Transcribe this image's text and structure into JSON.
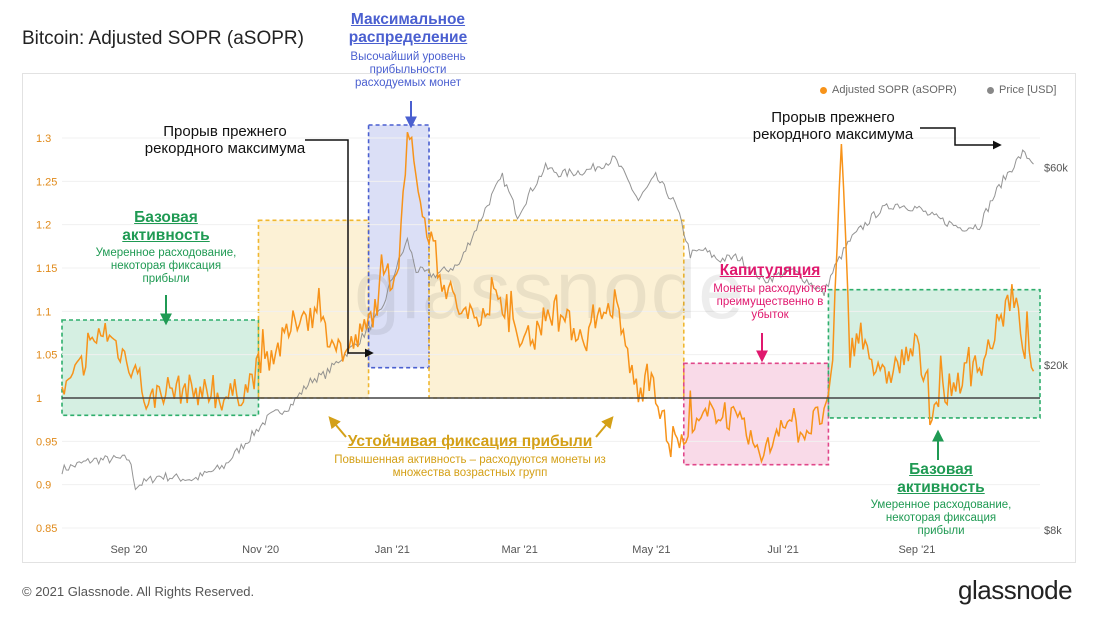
{
  "header": {
    "title": "Bitcoin: Adjusted SOPR (aSOPR)"
  },
  "footer": {
    "copyright": "© 2021 Glassnode. All Rights Reserved.",
    "brand": "glassnode"
  },
  "watermark": "glassnode",
  "legend": {
    "asopr": {
      "label": "Adjusted SOPR (aSOPR)",
      "color": "#f7931a"
    },
    "price": {
      "label": "Price [USD]",
      "color": "#888888"
    }
  },
  "chart_data": {
    "type": "line",
    "title": "Bitcoin: Adjusted SOPR (aSOPR)",
    "x_ticks": [
      "Sep '20",
      "Nov '20",
      "Jan '21",
      "Mar '21",
      "May '21",
      "Jul '21",
      "Sep '21"
    ],
    "y_left": {
      "label": "aSOPR",
      "ylim": [
        0.85,
        1.3
      ],
      "ticks": [
        "0.85",
        "0.9",
        "0.95",
        "1",
        "1.05",
        "1.1",
        "1.15",
        "1.2",
        "1.25",
        "1.3"
      ]
    },
    "y_right": {
      "label": "Price [USD]",
      "scale": "log",
      "ticks": [
        "$8k",
        "$20k",
        "$60k"
      ]
    },
    "baseline": 1,
    "series": [
      {
        "name": "Price [USD]",
        "color": "#888888",
        "axis": "right",
        "x": [
          "2020-08-01",
          "2020-08-15",
          "2020-09-01",
          "2020-09-04",
          "2020-09-15",
          "2020-10-01",
          "2020-10-15",
          "2020-10-25",
          "2020-11-05",
          "2020-11-15",
          "2020-11-25",
          "2020-12-01",
          "2020-12-17",
          "2020-12-27",
          "2021-01-08",
          "2021-01-12",
          "2021-01-20",
          "2021-02-01",
          "2021-02-10",
          "2021-02-21",
          "2021-02-28",
          "2021-03-13",
          "2021-03-20",
          "2021-04-01",
          "2021-04-14",
          "2021-04-25",
          "2021-05-03",
          "2021-05-12",
          "2021-05-19",
          "2021-05-25",
          "2021-06-01",
          "2021-06-10",
          "2021-06-22",
          "2021-07-05",
          "2021-07-20",
          "2021-07-25",
          "2021-08-01",
          "2021-08-14",
          "2021-08-22",
          "2021-09-01",
          "2021-09-07",
          "2021-09-21",
          "2021-09-30",
          "2021-10-10",
          "2021-10-20",
          "2021-10-25"
        ],
        "values": [
          11200,
          11800,
          11900,
          10200,
          10800,
          10600,
          11400,
          13000,
          15000,
          16000,
          18500,
          19000,
          23000,
          27000,
          40000,
          34000,
          33000,
          35000,
          44000,
          57000,
          46000,
          60000,
          58000,
          59000,
          63000,
          50000,
          57000,
          49000,
          37000,
          38000,
          36000,
          36500,
          32000,
          34000,
          29800,
          34500,
          40000,
          47000,
          49000,
          48000,
          46000,
          43000,
          43500,
          55000,
          65000,
          62000
        ]
      },
      {
        "name": "Adjusted SOPR (aSOPR)",
        "color": "#f7931a",
        "axis": "left",
        "x": [
          "2020-08-01",
          "2020-08-20",
          "2020-09-05",
          "2020-09-10",
          "2020-09-15",
          "2020-10-01",
          "2020-10-15",
          "2020-10-25",
          "2020-11-01",
          "2020-11-10",
          "2020-11-20",
          "2020-12-01",
          "2020-12-10",
          "2020-12-20",
          "2020-12-28",
          "2021-01-04",
          "2021-01-08",
          "2021-01-15",
          "2021-01-25",
          "2021-02-05",
          "2021-02-20",
          "2021-03-01",
          "2021-03-15",
          "2021-04-01",
          "2021-04-14",
          "2021-04-25",
          "2021-05-01",
          "2021-05-10",
          "2021-05-20",
          "2021-06-01",
          "2021-06-10",
          "2021-06-22",
          "2021-07-01",
          "2021-07-10",
          "2021-07-23",
          "2021-07-28",
          "2021-08-01",
          "2021-08-05",
          "2021-08-15",
          "2021-09-01",
          "2021-09-07",
          "2021-09-20",
          "2021-10-01",
          "2021-10-15",
          "2021-10-25"
        ],
        "values": [
          1.0,
          1.08,
          1.03,
          0.99,
          1.01,
          1.01,
          1.0,
          1.01,
          1.04,
          1.06,
          1.1,
          1.08,
          1.05,
          1.08,
          1.13,
          1.15,
          1.31,
          1.22,
          1.13,
          1.09,
          1.12,
          1.06,
          1.1,
          1.07,
          1.11,
          1.0,
          1.03,
          0.94,
          0.96,
          0.99,
          0.97,
          0.93,
          0.98,
          0.96,
          0.99,
          1.29,
          1.05,
          1.08,
          1.02,
          1.06,
          0.99,
          1.02,
          1.04,
          1.12,
          1.02
        ]
      }
    ],
    "regions": [
      {
        "name": "baseline-1",
        "start": "2020-08-01",
        "end": "2020-10-31",
        "ymin": 0.98,
        "ymax": 1.09,
        "color": "#2eae6c"
      },
      {
        "name": "profit-1",
        "start": "2020-10-31",
        "end": "2020-12-21",
        "ymin": 1.0,
        "ymax": 1.205,
        "color": "#f0b72f"
      },
      {
        "name": "distribution",
        "start": "2020-12-21",
        "end": "2021-01-18",
        "ymin": 1.035,
        "ymax": 1.315,
        "color": "#4a5fd0"
      },
      {
        "name": "profit-2",
        "start": "2021-01-18",
        "end": "2021-05-16",
        "ymin": 1.0,
        "ymax": 1.205,
        "color": "#f0b72f"
      },
      {
        "name": "capitulation",
        "start": "2021-05-16",
        "end": "2021-07-22",
        "ymin": 0.923,
        "ymax": 1.04,
        "color": "#e0478a"
      },
      {
        "name": "baseline-2",
        "start": "2021-07-22",
        "end": "2021-10-28",
        "ymin": 0.977,
        "ymax": 1.125,
        "color": "#2eae6c"
      }
    ]
  },
  "annotations": {
    "distribution": {
      "title": "Максимальное распределение",
      "body": "Высочайший уровень прибыльности расходуемых монет",
      "color": "#4a5fd0"
    },
    "baseline_left": {
      "title": "Базовая активность",
      "body": "Умеренное расходование, некоторая фиксация прибыли",
      "color": "#1f9a53"
    },
    "baseline_right": {
      "title": "Базовая активность",
      "body": "Умеренное расходование, некоторая фиксация прибыли",
      "color": "#1f9a53"
    },
    "profit": {
      "title": "Устойчивая фиксация прибыли",
      "body": "Повышенная активность – расходуются монеты из множества возрастных групп",
      "color": "#d4a017"
    },
    "capitulation": {
      "title": "Капитуляция",
      "body": "Монеты расходуются преимущественно в убыток",
      "color": "#e0186e"
    },
    "breakout_left": {
      "text": "Прорыв прежнего рекордного максимума"
    },
    "breakout_right": {
      "text": "Прорыв прежнего рекордного максимума"
    }
  }
}
